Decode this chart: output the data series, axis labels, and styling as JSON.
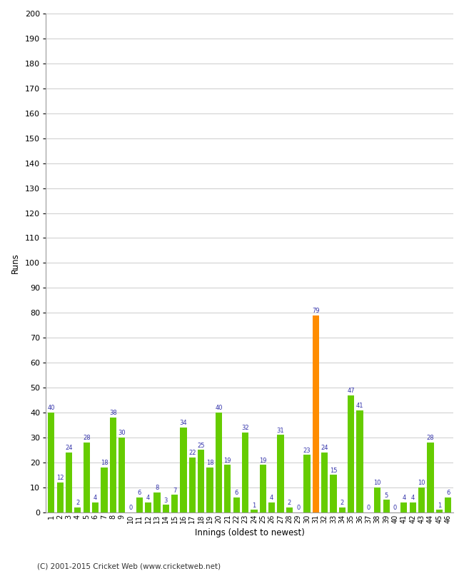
{
  "innings": [
    1,
    2,
    3,
    4,
    5,
    6,
    7,
    8,
    9,
    10,
    11,
    12,
    13,
    14,
    15,
    16,
    17,
    18,
    19,
    20,
    21,
    22,
    23,
    24,
    25,
    26,
    27,
    28,
    29,
    30,
    31,
    32,
    33,
    34,
    35,
    36,
    37,
    38,
    39,
    40,
    41,
    42,
    43,
    44,
    45,
    46
  ],
  "values": [
    40,
    12,
    24,
    2,
    28,
    4,
    18,
    38,
    30,
    0,
    6,
    4,
    8,
    3,
    7,
    34,
    22,
    25,
    18,
    40,
    19,
    6,
    32,
    1,
    19,
    4,
    31,
    2,
    0,
    23,
    79,
    24,
    15,
    2,
    47,
    41,
    0,
    10,
    5,
    0,
    4,
    4,
    10,
    28,
    1,
    6
  ],
  "colors": [
    "#66cc00",
    "#66cc00",
    "#66cc00",
    "#66cc00",
    "#66cc00",
    "#66cc00",
    "#66cc00",
    "#66cc00",
    "#66cc00",
    "#66cc00",
    "#66cc00",
    "#66cc00",
    "#66cc00",
    "#66cc00",
    "#66cc00",
    "#66cc00",
    "#66cc00",
    "#66cc00",
    "#66cc00",
    "#66cc00",
    "#66cc00",
    "#66cc00",
    "#66cc00",
    "#66cc00",
    "#66cc00",
    "#66cc00",
    "#66cc00",
    "#66cc00",
    "#66cc00",
    "#66cc00",
    "#ff8c00",
    "#66cc00",
    "#66cc00",
    "#66cc00",
    "#66cc00",
    "#66cc00",
    "#66cc00",
    "#66cc00",
    "#66cc00",
    "#66cc00",
    "#66cc00",
    "#66cc00",
    "#66cc00",
    "#66cc00",
    "#66cc00",
    "#66cc00"
  ],
  "xlabel": "Innings (oldest to newest)",
  "ylabel": "Runs",
  "ylim": [
    0,
    200
  ],
  "yticks": [
    0,
    10,
    20,
    30,
    40,
    50,
    60,
    70,
    80,
    90,
    100,
    110,
    120,
    130,
    140,
    150,
    160,
    170,
    180,
    190,
    200
  ],
  "background_color": "#ffffff",
  "footer": "(C) 2001-2015 Cricket Web (www.cricketweb.net)",
  "label_color": "#3333aa"
}
